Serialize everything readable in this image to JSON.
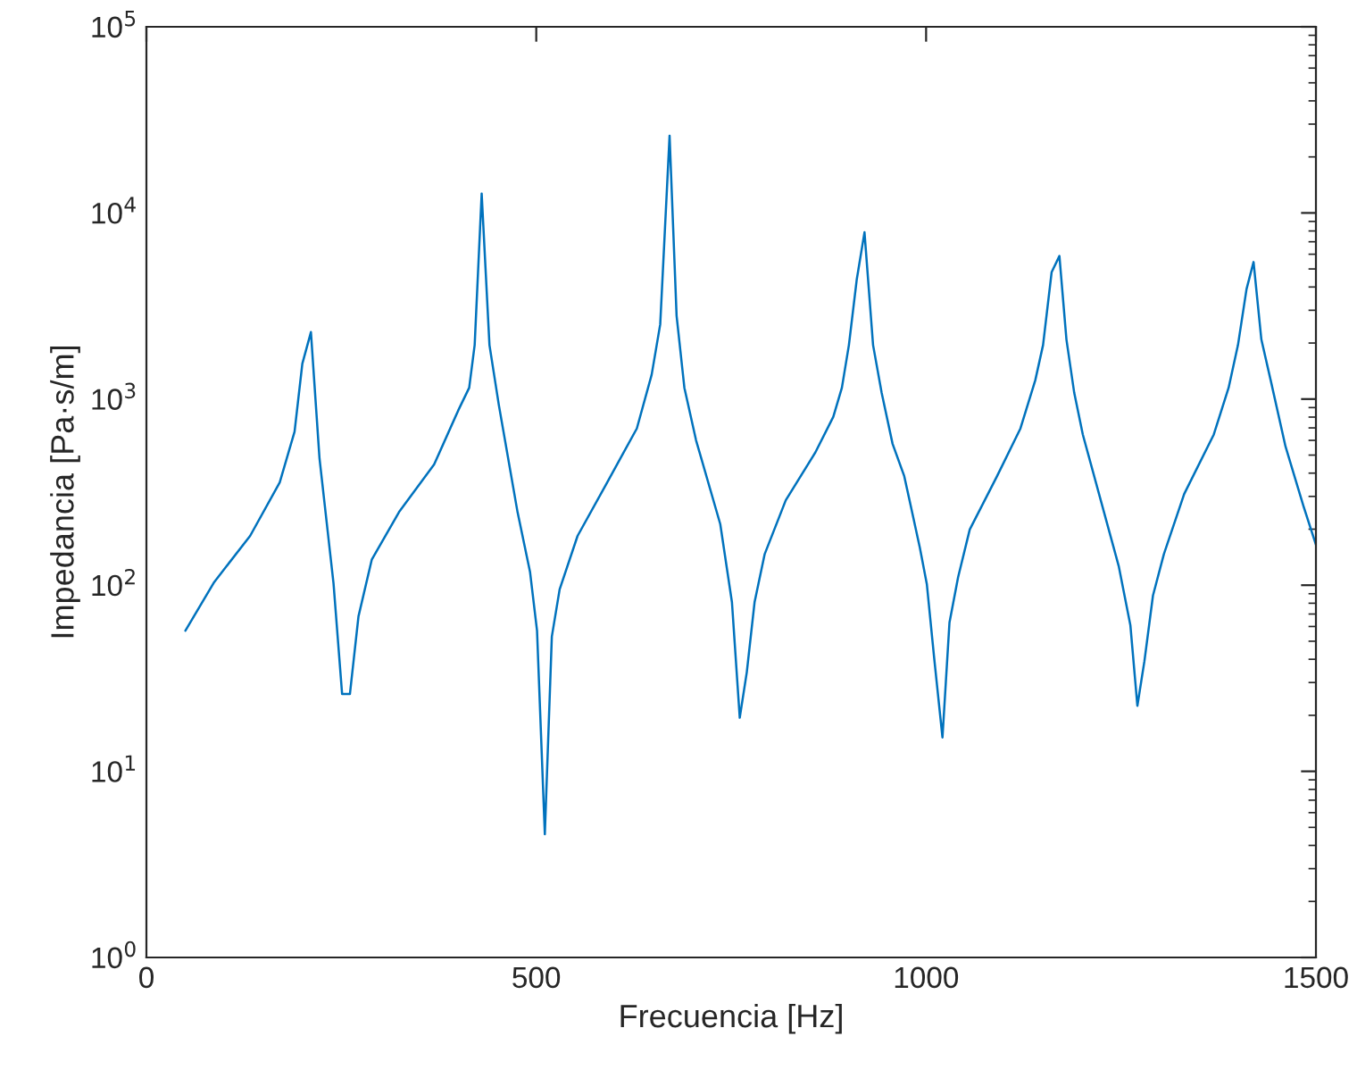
{
  "chart_data": {
    "type": "line",
    "xlabel": "Frecuencia [Hz]",
    "ylabel": "Impedancia [Pa·s/m]",
    "log": "y",
    "grid": false,
    "marker": "none",
    "line_style": "solid",
    "xlim": [
      0,
      1500
    ],
    "xticks": [
      0,
      500,
      1000,
      1500
    ],
    "ylim": [
      1,
      100000
    ],
    "yticks": [
      {
        "value": 1,
        "label": "10$^{0}$"
      },
      {
        "value": 10,
        "label": "10$^{1}$"
      },
      {
        "value": 100,
        "label": "10$^{2}$"
      },
      {
        "value": 1000,
        "label": "10$^{3}$"
      },
      {
        "value": 10000,
        "label": "10$^{4}$"
      },
      {
        "value": 100000,
        "label": "10$^{5}$"
      }
    ],
    "series": [
      {
        "color": "#0072bd",
        "x": [
          50,
          87,
          133,
          171,
          190,
          200,
          211,
          222,
          240,
          251,
          261,
          272,
          289,
          324,
          369,
          400,
          414,
          421,
          430,
          440,
          452,
          476,
          492,
          501,
          511,
          520,
          530,
          553,
          591,
          629,
          648,
          659,
          671,
          680,
          690,
          705,
          736,
          751,
          761,
          770,
          780,
          793,
          820,
          858,
          881,
          892,
          901,
          911,
          921,
          932,
          943,
          957,
          972,
          992,
          1001,
          1010,
          1021,
          1030,
          1041,
          1056,
          1091,
          1121,
          1140,
          1150,
          1161,
          1171,
          1180,
          1190,
          1201,
          1247,
          1262,
          1271,
          1280,
          1291,
          1305,
          1331,
          1369,
          1388,
          1400,
          1411,
          1420,
          1430,
          1442,
          1461,
          1484,
          1500
        ],
        "values": [
          57,
          104,
          184,
          357,
          667,
          1550,
          2290,
          480,
          102,
          26,
          26,
          68,
          137,
          247,
          445,
          870,
          1150,
          1950,
          12700,
          1950,
          930,
          247,
          118,
          57,
          4.6,
          53,
          95,
          184,
          357,
          695,
          1350,
          2520,
          26000,
          2800,
          1150,
          600,
          213,
          81,
          19.4,
          34,
          81,
          147,
          286,
          517,
          803,
          1150,
          1950,
          4370,
          7870,
          1950,
          1080,
          575,
          385,
          159,
          101,
          42,
          15.2,
          63,
          110,
          199,
          385,
          695,
          1260,
          1950,
          4800,
          5870,
          2090,
          1080,
          645,
          127,
          61,
          22.5,
          39,
          88,
          147,
          309,
          645,
          1150,
          1950,
          3900,
          5450,
          2090,
          1260,
          556,
          266,
          165
        ]
      }
    ]
  }
}
